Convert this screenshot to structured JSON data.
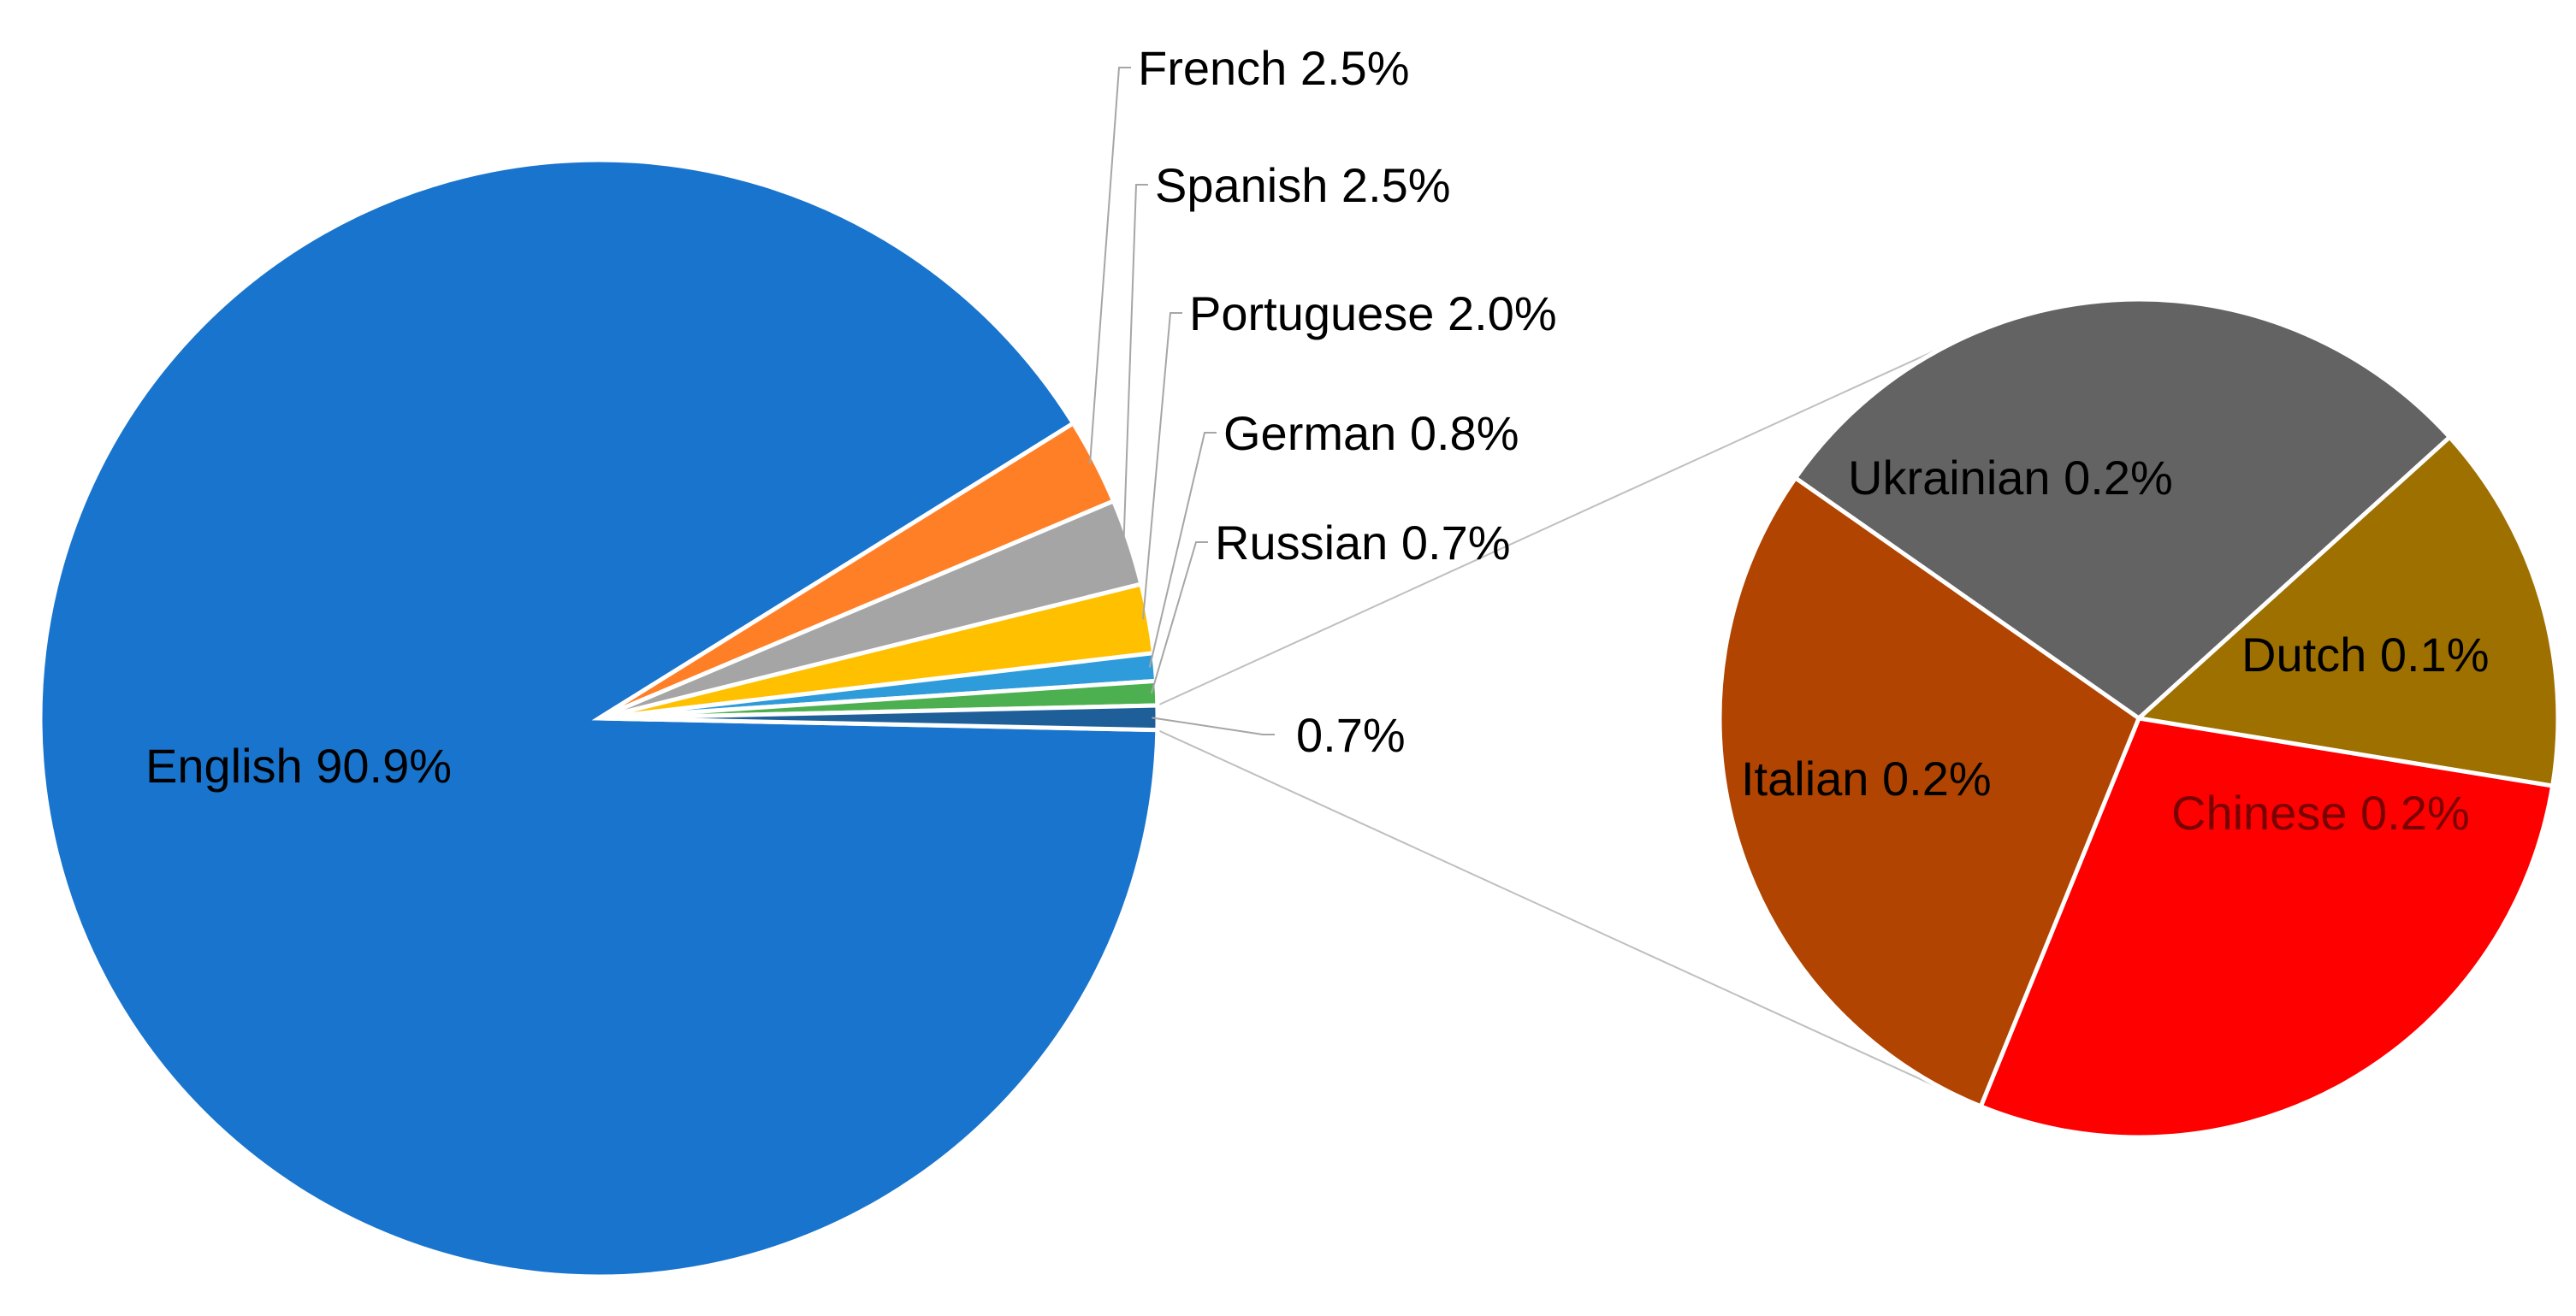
{
  "chart_data": {
    "type": "pie",
    "subtype": "pie-of-pie",
    "title": "",
    "main_pie": {
      "slices": [
        {
          "label": "English",
          "value": 90.9,
          "value_label": "English 90.9%",
          "color": "#1874CD"
        },
        {
          "label": "French",
          "value": 2.5,
          "value_label": "French 2.5%",
          "color": "#FF7F27"
        },
        {
          "label": "Spanish",
          "value": 2.5,
          "value_label": "Spanish 2.5%",
          "color": "#A5A5A5"
        },
        {
          "label": "Portuguese",
          "value": 2.0,
          "value_label": "Portuguese 2.0%",
          "color": "#FFC000"
        },
        {
          "label": "German",
          "value": 0.8,
          "value_label": "German 0.8%",
          "color": "#2E9BDA"
        },
        {
          "label": "Russian",
          "value": 0.7,
          "value_label": "Russian 0.7%",
          "color": "#4CAF50"
        },
        {
          "label": "",
          "value": 0.7,
          "value_label": "0.7%",
          "color": "#1F5F99"
        }
      ]
    },
    "secondary_pie": {
      "slices": [
        {
          "label": "Ukrainian",
          "value": 0.2,
          "value_label": "Ukrainian 0.2%",
          "color": "#636363"
        },
        {
          "label": "Dutch",
          "value": 0.1,
          "value_label": "Dutch 0.1%",
          "color": "#9E7000"
        },
        {
          "label": "Chinese",
          "value": 0.2,
          "value_label": "Chinese 0.2%",
          "color": "#FF0000"
        },
        {
          "label": "Italian",
          "value": 0.2,
          "value_label": "Italian 0.2%",
          "color": "#B04400"
        }
      ]
    },
    "legend": "none"
  }
}
